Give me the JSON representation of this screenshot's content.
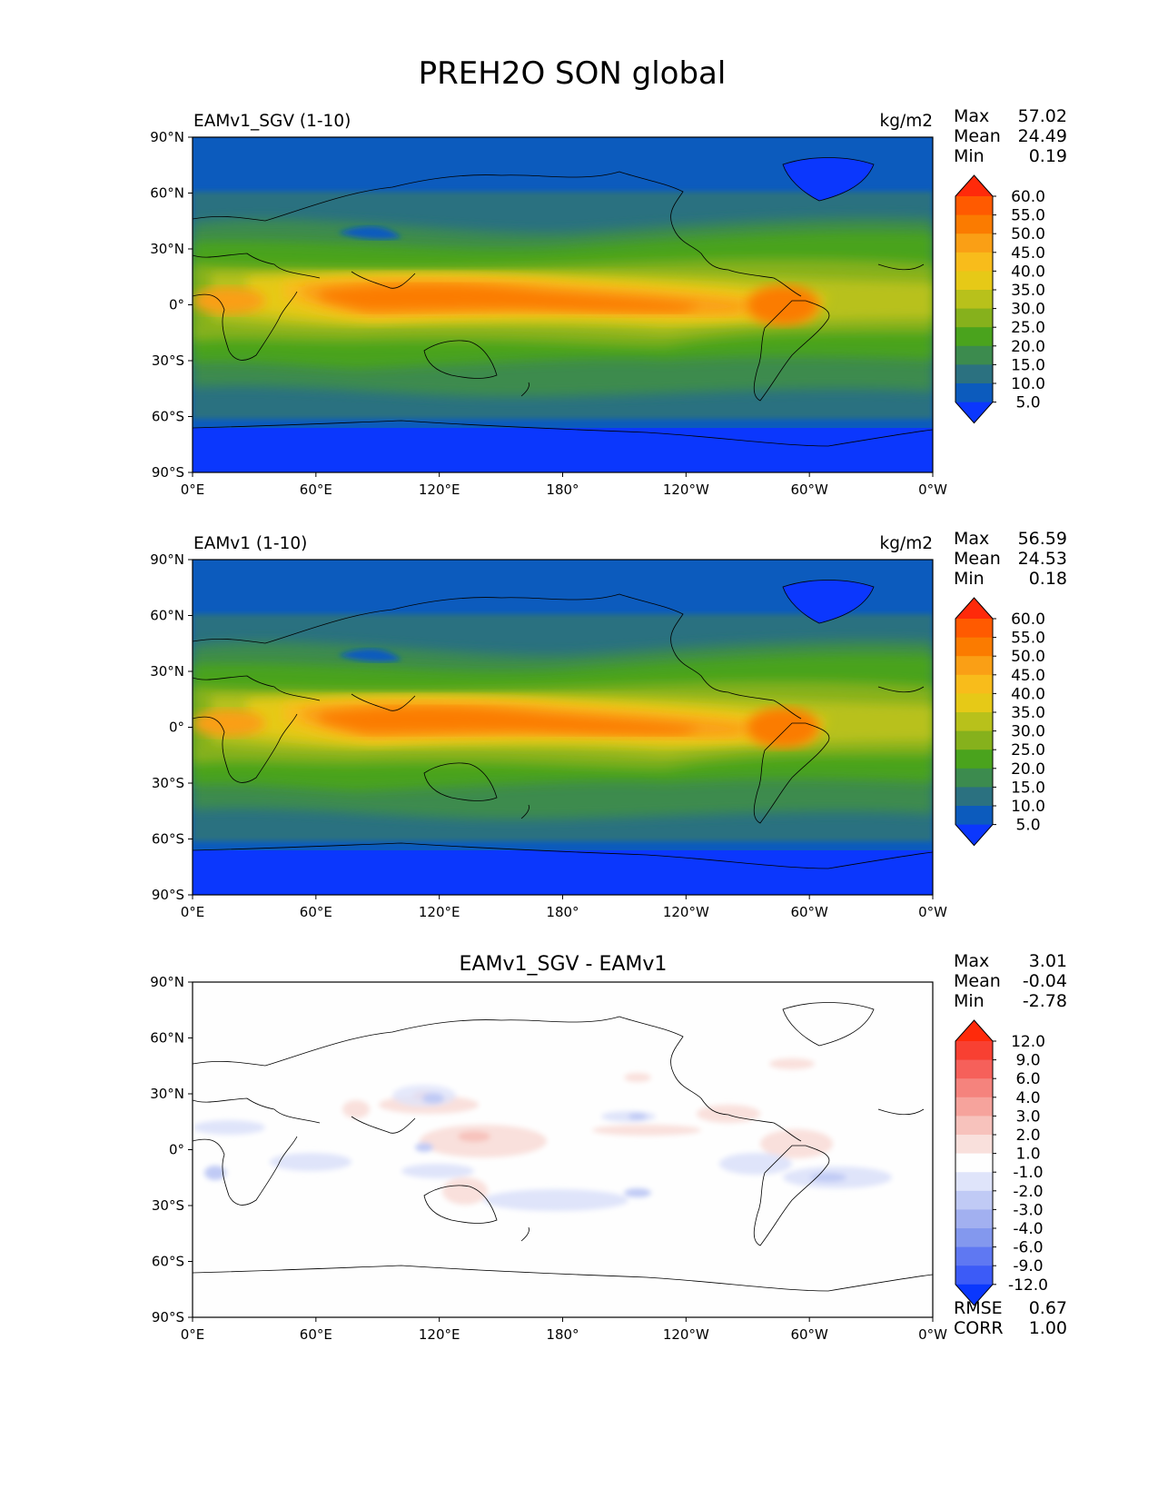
{
  "chart_data": {
    "type": "heatmap",
    "title": "PREH2O SON global",
    "ticks": {
      "x": [
        "0°E",
        "60°E",
        "120°E",
        "180°",
        "120°W",
        "60°W",
        "0°W"
      ],
      "y": [
        "90°N",
        "60°N",
        "30°N",
        "0°",
        "30°S",
        "60°S",
        "90°S"
      ]
    },
    "panels": [
      {
        "name": "EAMv1_SGV (1-10)",
        "units": "kg/m2",
        "stats": [
          {
            "label": "Max",
            "value": "57.02"
          },
          {
            "label": "Mean",
            "value": "24.49"
          },
          {
            "label": "Min",
            "value": "0.19"
          }
        ],
        "colorbar": {
          "levels": [
            "60.0",
            "55.0",
            "50.0",
            "45.0",
            "40.0",
            "35.0",
            "30.0",
            "25.0",
            "20.0",
            "15.0",
            "10.0",
            "5.0"
          ],
          "colors": [
            "#ff2a0a",
            "#ff5a00",
            "#fb7b00",
            "#fa9f15",
            "#f8bc1b",
            "#e6c917",
            "#b8c11b",
            "#86b11c",
            "#4aa31d",
            "#3c8b4e",
            "#2b7180",
            "#0c5bbd",
            "#0b37fd"
          ]
        }
      },
      {
        "name": "EAMv1 (1-10)",
        "units": "kg/m2",
        "stats": [
          {
            "label": "Max",
            "value": "56.59"
          },
          {
            "label": "Mean",
            "value": "24.53"
          },
          {
            "label": "Min",
            "value": "0.18"
          }
        ],
        "colorbar": {
          "levels": [
            "60.0",
            "55.0",
            "50.0",
            "45.0",
            "40.0",
            "35.0",
            "30.0",
            "25.0",
            "20.0",
            "15.0",
            "10.0",
            "5.0"
          ],
          "colors": [
            "#ff2a0a",
            "#ff5a00",
            "#fb7b00",
            "#fa9f15",
            "#f8bc1b",
            "#e6c917",
            "#b8c11b",
            "#86b11c",
            "#4aa31d",
            "#3c8b4e",
            "#2b7180",
            "#0c5bbd",
            "#0b37fd"
          ]
        }
      },
      {
        "name": "EAMv1_SGV - EAMv1",
        "units": "",
        "stats": [
          {
            "label": "Max",
            "value": "3.01"
          },
          {
            "label": "Mean",
            "value": "-0.04"
          },
          {
            "label": "Min",
            "value": "-2.78"
          }
        ],
        "colorbar": {
          "levels": [
            "12.0",
            "9.0",
            "6.0",
            "4.0",
            "3.0",
            "2.0",
            "1.0",
            "-1.0",
            "-2.0",
            "-3.0",
            "-4.0",
            "-6.0",
            "-9.0",
            "-12.0"
          ],
          "colors": [
            "#ff2a0a",
            "#f84032",
            "#f6605a",
            "#f5837d",
            "#f6a39c",
            "#f7c2bc",
            "#f9e0dc",
            "#fefefe",
            "#dfe4fa",
            "#c0caf5",
            "#a2b0f0",
            "#8398ee",
            "#5f78f2",
            "#3c5bf7",
            "#0a37fd"
          ]
        },
        "footer": [
          {
            "label": "RMSE",
            "value": "0.67"
          },
          {
            "label": "CORR",
            "value": "1.00"
          }
        ]
      }
    ]
  }
}
